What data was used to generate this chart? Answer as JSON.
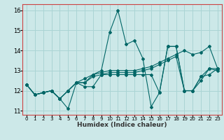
{
  "xlabel": "Humidex (Indice chaleur)",
  "bg_color": "#cce8e8",
  "grid_color": "#aad4d4",
  "line_color": "#006666",
  "spine_color": "#cc4444",
  "xlim": [
    -0.5,
    23.5
  ],
  "ylim": [
    10.8,
    16.3
  ],
  "yticks": [
    11,
    12,
    13,
    14,
    15,
    16
  ],
  "xticks": [
    0,
    1,
    2,
    3,
    4,
    5,
    6,
    7,
    8,
    9,
    10,
    11,
    12,
    13,
    14,
    15,
    16,
    17,
    18,
    19,
    20,
    21,
    22,
    23
  ],
  "lines": [
    [
      12.3,
      11.8,
      11.9,
      12.0,
      11.6,
      11.1,
      12.4,
      12.6,
      12.8,
      13.0,
      14.9,
      16.0,
      14.3,
      14.5,
      13.6,
      11.2,
      11.9,
      14.2,
      14.2,
      12.0,
      12.0,
      12.7,
      13.1,
      13.0
    ],
    [
      12.3,
      11.8,
      11.9,
      12.0,
      11.6,
      12.0,
      12.4,
      12.4,
      12.8,
      12.9,
      13.0,
      13.0,
      13.0,
      13.0,
      13.1,
      13.2,
      13.4,
      13.6,
      13.8,
      14.0,
      13.8,
      13.9,
      14.2,
      13.1
    ],
    [
      12.3,
      11.8,
      11.9,
      12.0,
      11.6,
      12.0,
      12.4,
      12.4,
      12.7,
      12.8,
      12.9,
      12.9,
      12.9,
      12.9,
      13.0,
      13.1,
      13.3,
      13.5,
      13.7,
      12.0,
      12.0,
      12.7,
      12.8,
      13.1
    ],
    [
      12.3,
      11.8,
      11.9,
      12.0,
      11.6,
      12.0,
      12.4,
      12.2,
      12.2,
      12.8,
      12.8,
      12.8,
      12.8,
      12.8,
      12.8,
      12.8,
      11.9,
      14.2,
      14.2,
      12.0,
      12.0,
      12.5,
      13.1,
      13.1
    ]
  ]
}
